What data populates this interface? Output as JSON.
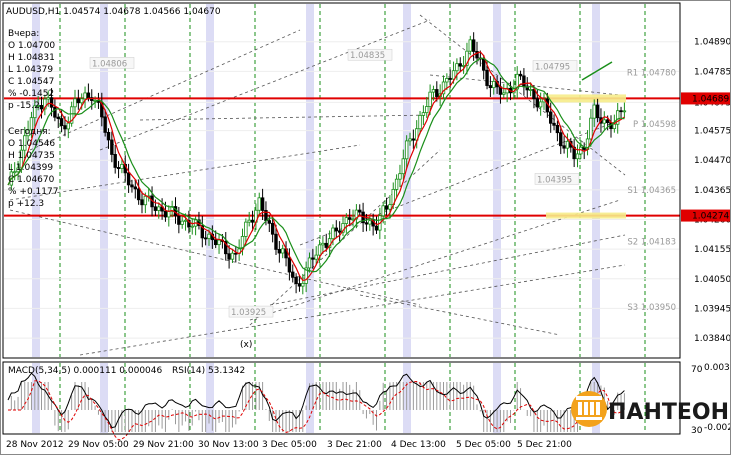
{
  "header": {
    "symbol_info": "AUDUSD,H1  1.04574 1.04678 1.04566 1.04670"
  },
  "info_panel": {
    "yesterday_title": "Вчера:",
    "yesterday": [
      "O 1.04700",
      "H 1.04831",
      "L 1.04379",
      "C 1.04547",
      "% -0.1452",
      "p -15.2"
    ],
    "today_title": "Сегодня:",
    "today": [
      "O 1.04546",
      "H 1.04735",
      "L 1.04399",
      "C 1.04670",
      "% +0.1177",
      "p +12.3"
    ]
  },
  "colors": {
    "background": "#ffffff",
    "grid": "#1a8f1a",
    "bull": "#1a8f1a",
    "bear": "#000000",
    "ma_fast": "#e00000",
    "ma_slow": "#1a8f1a",
    "level_line": "#e00000",
    "session_band": "#dcdcf5",
    "highlight": "#f6ec8a",
    "macd_signal": "#e00000"
  },
  "chart_data": {
    "type": "candlestick",
    "title": "AUDUSD,H1",
    "ylim": [
      1.0378,
      1.0502
    ],
    "x_tick_labels": [
      "28 Nov 2012",
      "29 Nov 05:00",
      "29 Nov 21:00",
      "30 Nov 13:00",
      "3 Dec 05:00",
      "3 Dec 21:00",
      "4 Dec 13:00",
      "5 Dec 05:00",
      "5 Dec 21:00"
    ],
    "y_tick_labels": [
      "1.04890",
      "1.04785",
      "1.04675",
      "1.04575",
      "1.04470",
      "1.04365",
      "1.04260",
      "1.04155",
      "1.04050",
      "1.03945",
      "1.03840"
    ],
    "y_tick_values": [
      1.0489,
      1.04785,
      1.04675,
      1.04575,
      1.0447,
      1.04365,
      1.0426,
      1.04155,
      1.0405,
      1.03945,
      1.0384
    ],
    "price_tags": [
      {
        "label": "1.04689",
        "value": 1.04689
      },
      {
        "label": "1.04274",
        "value": 1.04274
      }
    ],
    "horizontal_levels": [
      1.04689,
      1.04274
    ],
    "pivot_levels": [
      {
        "label": "R1 1.04780",
        "value": 1.0478
      },
      {
        "label": "P 1.04598",
        "value": 1.04598
      },
      {
        "label": "S1 1.04365",
        "value": 1.04365
      },
      {
        "label": "S2 1.04183",
        "value": 1.04183
      },
      {
        "label": "S3 1.03950",
        "value": 1.0395
      }
    ],
    "peak_labels": [
      {
        "label": "1.04806",
        "value": 1.04806
      },
      {
        "label": "1.04835",
        "value": 1.04835
      },
      {
        "label": "1.04795",
        "value": 1.04795
      },
      {
        "label": "1.04395",
        "value": 1.04395
      },
      {
        "label": "1.03925",
        "value": 1.03925
      }
    ],
    "wave_label": "(x)",
    "close_anchors": [
      [
        0,
        1.0437
      ],
      [
        3,
        1.0447
      ],
      [
        7,
        1.0462
      ],
      [
        11,
        1.047
      ],
      [
        16,
        1.0458
      ],
      [
        20,
        1.0467
      ],
      [
        25,
        1.0471
      ],
      [
        28,
        1.0462
      ],
      [
        31,
        1.0449
      ],
      [
        35,
        1.0441
      ],
      [
        40,
        1.0433
      ],
      [
        45,
        1.043
      ],
      [
        50,
        1.0427
      ],
      [
        55,
        1.0424
      ],
      [
        60,
        1.042
      ],
      [
        64,
        1.0416
      ],
      [
        68,
        1.0413
      ],
      [
        72,
        1.0426
      ],
      [
        75,
        1.0432
      ],
      [
        79,
        1.042
      ],
      [
        82,
        1.0414
      ],
      [
        86,
        1.0402
      ],
      [
        90,
        1.041
      ],
      [
        94,
        1.0418
      ],
      [
        98,
        1.0421
      ],
      [
        102,
        1.0428
      ],
      [
        106,
        1.0426
      ],
      [
        110,
        1.0424
      ],
      [
        113,
        1.043
      ],
      [
        116,
        1.044
      ],
      [
        119,
        1.0451
      ],
      [
        123,
        1.0462
      ],
      [
        126,
        1.0469
      ],
      [
        130,
        1.0474
      ],
      [
        134,
        1.0479
      ],
      [
        138,
        1.0488
      ],
      [
        141,
        1.0481
      ],
      [
        144,
        1.0474
      ],
      [
        148,
        1.047
      ],
      [
        152,
        1.0476
      ],
      [
        156,
        1.0471
      ],
      [
        160,
        1.0466
      ],
      [
        163,
        1.0459
      ],
      [
        166,
        1.0452
      ],
      [
        169,
        1.0449
      ],
      [
        172,
        1.0452
      ],
      [
        175,
        1.0464
      ],
      [
        178,
        1.0461
      ],
      [
        181,
        1.0459
      ],
      [
        184,
        1.0467
      ]
    ],
    "macd_indicator": {
      "label": "MACD(5,34,5) 0.000111 0.000046"
    },
    "rsi_indicator": {
      "label": "RSI(14) 53.1342"
    },
    "sub_y_tick_labels": [
      "70",
      "30",
      "0.003295",
      "-0.00214"
    ]
  },
  "watermark": {
    "logo_text": "ПАНТЕОН"
  }
}
